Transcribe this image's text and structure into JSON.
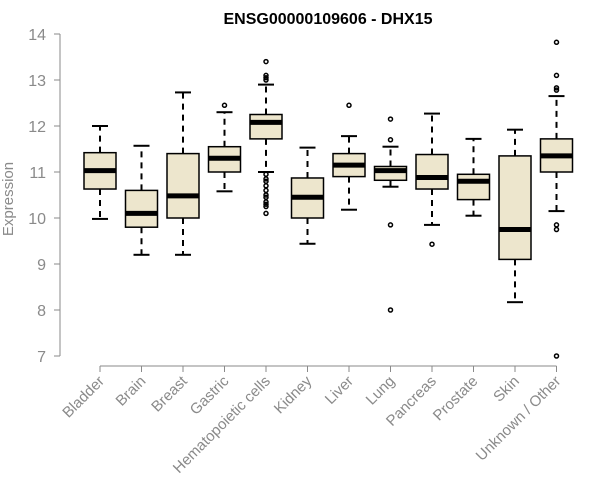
{
  "chart_data": {
    "type": "box",
    "title": "ENSG00000109606 - DHX15",
    "xlabel": "",
    "ylabel": "Expression",
    "ylim": [
      7,
      14
    ],
    "yticks": [
      7,
      8,
      9,
      10,
      11,
      12,
      13,
      14
    ],
    "box_fill": "#ede6cd",
    "grid": false,
    "categories": [
      "Bladder",
      "Brain",
      "Breast",
      "Gastric",
      "Hematopoietic cells",
      "Kidney",
      "Liver",
      "Lung",
      "Pancreas",
      "Prostate",
      "Skin",
      "Unknown / Other"
    ],
    "boxes": [
      {
        "min": 9.98,
        "q1": 10.63,
        "median": 11.03,
        "q3": 11.42,
        "max": 12.0,
        "outliers": []
      },
      {
        "min": 9.2,
        "q1": 9.8,
        "median": 10.1,
        "q3": 10.6,
        "max": 11.57,
        "outliers": []
      },
      {
        "min": 9.2,
        "q1": 10.0,
        "median": 10.48,
        "q3": 11.4,
        "max": 12.73,
        "outliers": []
      },
      {
        "min": 10.58,
        "q1": 11.0,
        "median": 11.3,
        "q3": 11.55,
        "max": 12.3,
        "outliers": [
          12.45
        ]
      },
      {
        "min": 11.0,
        "q1": 11.72,
        "median": 12.08,
        "q3": 12.25,
        "max": 12.9,
        "outliers": [
          13.4,
          13.1,
          13.05,
          13.0,
          10.95,
          10.85,
          10.8,
          10.7,
          10.6,
          10.5,
          10.45,
          10.35,
          10.3,
          10.25,
          10.1
        ]
      },
      {
        "min": 9.44,
        "q1": 10.0,
        "median": 10.45,
        "q3": 10.87,
        "max": 11.53,
        "outliers": []
      },
      {
        "min": 10.18,
        "q1": 10.9,
        "median": 11.15,
        "q3": 11.4,
        "max": 11.78,
        "outliers": [
          12.45
        ]
      },
      {
        "min": 10.68,
        "q1": 10.82,
        "median": 11.03,
        "q3": 11.12,
        "max": 11.55,
        "outliers": [
          12.15,
          11.7,
          9.85,
          8.0
        ]
      },
      {
        "min": 9.85,
        "q1": 10.63,
        "median": 10.88,
        "q3": 11.38,
        "max": 12.27,
        "outliers": [
          9.43
        ]
      },
      {
        "min": 10.05,
        "q1": 10.4,
        "median": 10.8,
        "q3": 10.95,
        "max": 11.72,
        "outliers": []
      },
      {
        "min": 8.17,
        "q1": 9.1,
        "median": 9.75,
        "q3": 11.35,
        "max": 11.92,
        "outliers": []
      },
      {
        "min": 10.15,
        "q1": 11.0,
        "median": 11.35,
        "q3": 11.72,
        "max": 12.65,
        "outliers": [
          13.82,
          13.1,
          12.83,
          12.78,
          9.85,
          9.75,
          7.0
        ]
      }
    ]
  }
}
